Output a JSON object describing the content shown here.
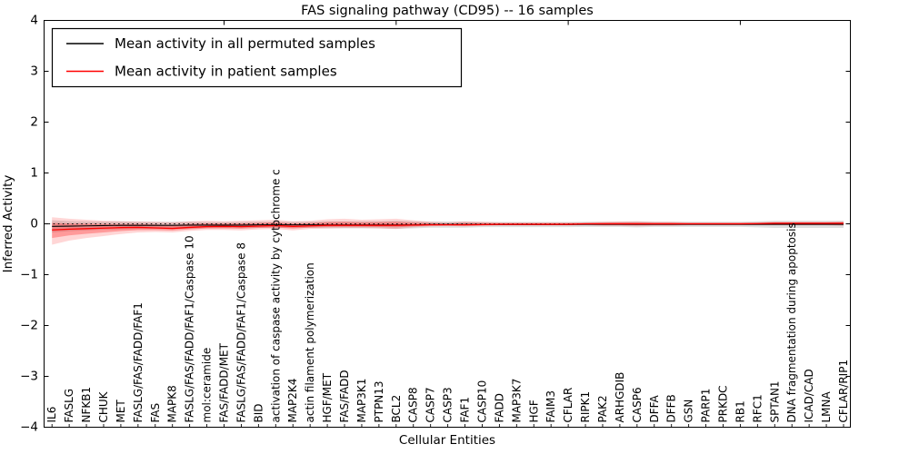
{
  "figure": {
    "title": "FAS signaling pathway (CD95) -- 16 samples",
    "xlabel": "Cellular Entities",
    "ylabel": "Inferred Activity"
  },
  "legend": {
    "position": "upper left",
    "entries": [
      {
        "label": "Mean activity in all permuted samples",
        "color": "#000000"
      },
      {
        "label": "Mean activity in patient samples",
        "color": "#ff0000"
      }
    ]
  },
  "chart_data": {
    "type": "line",
    "title": "FAS signaling pathway (CD95) -- 16 samples",
    "xlabel": "Cellular Entities",
    "ylabel": "Inferred Activity",
    "ylim": [
      -4,
      4
    ],
    "yticks": [
      4,
      3,
      2,
      1,
      0,
      -1,
      -2,
      -3,
      -4
    ],
    "top_axis_tick_indices": [
      10,
      20,
      30,
      40
    ],
    "grid": false,
    "legend_position": "upper left",
    "zero_line": {
      "style": "dotted",
      "color": "#000000",
      "y": 0
    },
    "categories": [
      "IL6",
      "FASLG",
      "NFKB1",
      "CHUK",
      "MET",
      "FASLG/FAS/FADD/FAF1",
      "FAS",
      "MAPK8",
      "FASLG/FAS/FADD/FAF1/Caspase 10",
      "mol:ceramide",
      "FAS/FADD/MET",
      "FASLG/FAS/FADD/FAF1/Caspase 8",
      "BID",
      "activation of caspase activity by cytochrome c",
      "MAP2K4",
      "actin filament polymerization",
      "HGF/MET",
      "FAS/FADD",
      "MAP3K1",
      "PTPN13",
      "BCL2",
      "CASP8",
      "CASP7",
      "CASP3",
      "FAF1",
      "CASP10",
      "FADD",
      "MAP3K7",
      "HGF",
      "FAIM3",
      "CFLAR",
      "RIPK1",
      "PAK2",
      "ARHGDIB",
      "CASP6",
      "DFFA",
      "DFFB",
      "GSN",
      "PARP1",
      "PRKDC",
      "RB1",
      "RFC1",
      "SPTAN1",
      "DNA fragmentation during apoptosis",
      "ICAD/CAD",
      "LMNA",
      "CFLAR/RIP1"
    ],
    "series": [
      {
        "name": "Mean activity in all permuted samples",
        "color": "#000000",
        "style": "solid",
        "values": [
          -0.05,
          -0.045,
          -0.04,
          -0.035,
          -0.03,
          -0.03,
          -0.03,
          -0.03,
          -0.025,
          -0.025,
          -0.025,
          -0.025,
          -0.02,
          -0.02,
          -0.02,
          -0.02,
          -0.02,
          -0.02,
          -0.02,
          -0.02,
          -0.02,
          -0.02,
          -0.015,
          -0.015,
          -0.015,
          -0.015,
          -0.015,
          -0.015,
          -0.015,
          -0.015,
          -0.015,
          -0.01,
          -0.01,
          -0.01,
          -0.01,
          -0.01,
          -0.01,
          -0.01,
          -0.01,
          -0.01,
          -0.01,
          -0.01,
          -0.01,
          -0.01,
          -0.01,
          -0.01,
          -0.01
        ]
      },
      {
        "name": "Mean activity in patient samples",
        "color": "#ff0000",
        "style": "solid",
        "values": [
          -0.12,
          -0.105,
          -0.095,
          -0.085,
          -0.075,
          -0.07,
          -0.08,
          -0.09,
          -0.07,
          -0.055,
          -0.05,
          -0.055,
          -0.045,
          -0.035,
          -0.05,
          -0.04,
          -0.03,
          -0.03,
          -0.03,
          -0.03,
          -0.03,
          -0.025,
          -0.02,
          -0.02,
          -0.02,
          -0.015,
          -0.01,
          -0.01,
          -0.01,
          -0.01,
          -0.01,
          0,
          0,
          0,
          0,
          0,
          0,
          0,
          0,
          0,
          0,
          0.005,
          0.01,
          0.01,
          0.01,
          0.01,
          0.01
        ]
      }
    ],
    "bands": [
      {
        "name": "permuted-samples-std-band",
        "color": "#000000",
        "opacity": 0.13,
        "center_series": 0,
        "half_widths": [
          0.12,
          0.1,
          0.09,
          0.08,
          0.08,
          0.07,
          0.07,
          0.07,
          0.07,
          0.06,
          0.06,
          0.06,
          0.06,
          0.06,
          0.06,
          0.06,
          0.07,
          0.07,
          0.07,
          0.07,
          0.08,
          0.07,
          0.06,
          0.06,
          0.06,
          0.05,
          0.05,
          0.05,
          0.05,
          0.05,
          0.05,
          0.05,
          0.05,
          0.05,
          0.06,
          0.05,
          0.05,
          0.05,
          0.05,
          0.05,
          0.05,
          0.06,
          0.07,
          0.07,
          0.07,
          0.07,
          0.07
        ]
      },
      {
        "name": "patient-samples-outer-band",
        "color": "#ff0000",
        "opacity": 0.16,
        "upper": [
          0.13,
          0.1,
          0.08,
          0.06,
          0.05,
          0.05,
          0.04,
          0.03,
          0.05,
          0.06,
          0.05,
          0.06,
          0.07,
          0.08,
          0.05,
          0.06,
          0.09,
          0.1,
          0.08,
          0.09,
          0.1,
          0.07,
          0.04,
          0.03,
          0.05,
          0.04,
          0.03,
          0.03,
          0.03,
          0.03,
          0.03,
          0.03,
          0.04,
          0.05,
          0.05,
          0.04,
          0.04,
          0.03,
          0.03,
          0.03,
          0.03,
          0.03,
          0.04,
          0.04,
          0.04,
          0.04,
          0.05
        ],
        "lower": [
          -0.41,
          -0.33,
          -0.28,
          -0.24,
          -0.2,
          -0.17,
          -0.16,
          -0.17,
          -0.14,
          -0.12,
          -0.12,
          -0.13,
          -0.11,
          -0.1,
          -0.13,
          -0.1,
          -0.09,
          -0.08,
          -0.08,
          -0.09,
          -0.1,
          -0.07,
          -0.05,
          -0.04,
          -0.05,
          -0.04,
          -0.03,
          -0.03,
          -0.03,
          -0.03,
          -0.03,
          -0.03,
          -0.04,
          -0.04,
          -0.05,
          -0.04,
          -0.04,
          -0.03,
          -0.03,
          -0.03,
          -0.03,
          -0.03,
          -0.03,
          -0.03,
          -0.03,
          -0.03,
          -0.04
        ]
      },
      {
        "name": "patient-samples-inner-band",
        "color": "#ff0000",
        "opacity": 0.28,
        "derived_from_outer_scale": 0.55
      }
    ]
  },
  "colors": {
    "background": "#ffffff",
    "axes": "#000000",
    "patient_line": "#ff0000",
    "permuted_line": "#000000"
  }
}
